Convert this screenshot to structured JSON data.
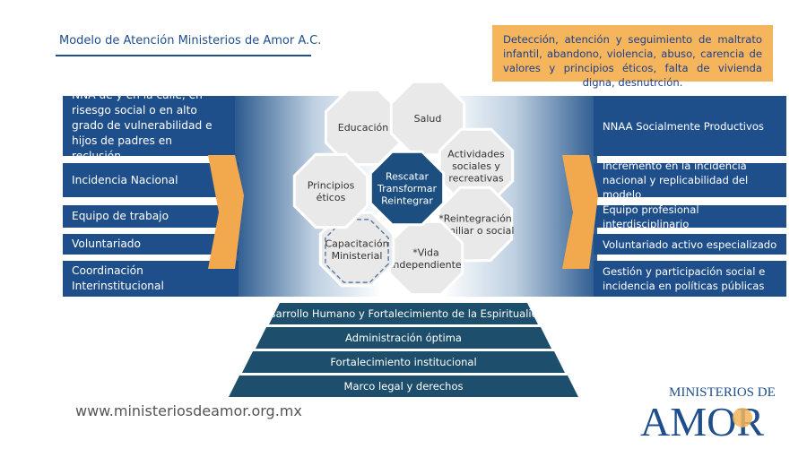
{
  "header": {
    "title": "Modelo de Atención Ministerios de Amor A.C.",
    "problem_note": "Detección, atención y seguimiento de maltrato infantil, abandono, violencia, abuso, carencia de valores y principios éticos, falta de vivienda digna, desnutrción."
  },
  "left_items": [
    "NNA de y en la calle, en risesgo social o en alto grado de vulnerabilidad e hijos de padres en reclusión.",
    "Incidencia Nacional",
    "Equipo de trabajo",
    "Voluntariado",
    "Coordinación Interinstitucional"
  ],
  "right_items": [
    "NNAA Socialmente Productivos",
    "Incremento en la incidencia nacional y replicabilidad del modelo",
    "Equipo profesional interdisciplinario",
    "Voluntariado activo especializado",
    "Gestión y participación social e incidencia en políticas públicas"
  ],
  "center": {
    "core": [
      "Rescatar",
      "Transformar",
      "Reintegrar"
    ],
    "petals": {
      "educacion": [
        "Educación"
      ],
      "salud": [
        "Salud"
      ],
      "actividades": [
        "Actividades",
        "sociales y",
        "recreativas"
      ],
      "reintegracion": [
        "*Reintegración",
        "familiar o social"
      ],
      "vida": [
        "*Vida",
        "independiente"
      ],
      "capacitacion": [
        "Capacitación",
        "Ministerial"
      ],
      "principios": [
        "Principios",
        "éticos"
      ]
    }
  },
  "foundation": [
    "Desarrollo Humano y Fortalecimiento de la Espiritualidad",
    "Administración óptima",
    "Fortalecimiento institucional",
    "Marco legal y derechos"
  ],
  "footer": {
    "url": "www.ministeriosdeamor.org.mx"
  },
  "logo": {
    "line1": "MINISTERIOS DE",
    "line2": "AMOR"
  },
  "colors": {
    "navy": "#1f4f8b",
    "teal": "#1d4e6b",
    "orange": "#f4b55c",
    "gray_hex": "#e9e9e9"
  }
}
